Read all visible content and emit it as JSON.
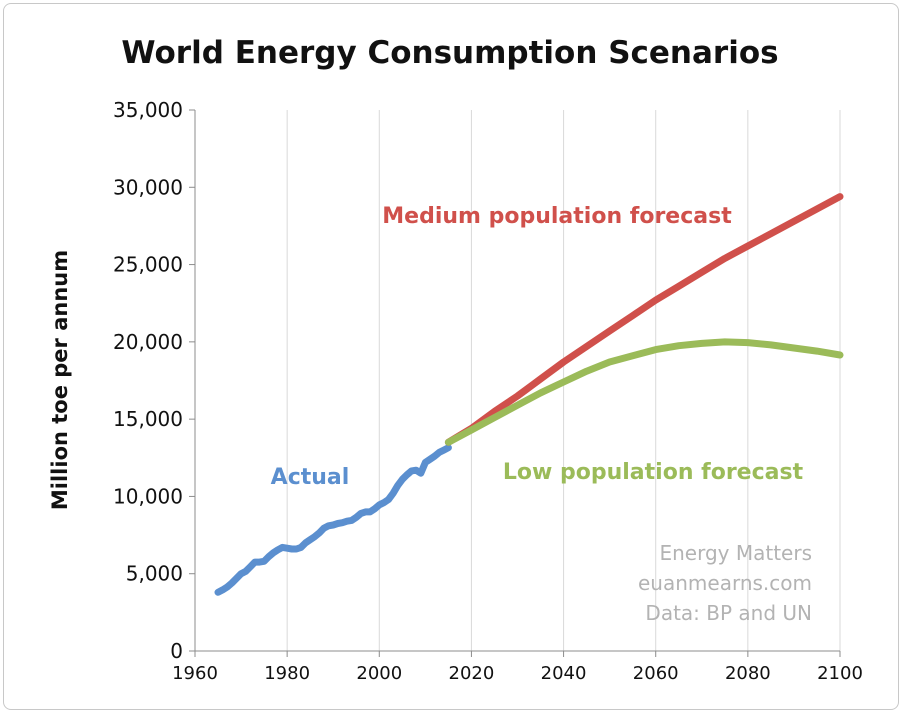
{
  "chart_data": {
    "type": "line",
    "title": "World Energy Consumption Scenarios",
    "xlabel": "",
    "ylabel": "Million toe per annum",
    "xlim": [
      1960,
      2100
    ],
    "ylim": [
      0,
      35000
    ],
    "xticks": [
      1960,
      1980,
      2000,
      2020,
      2040,
      2060,
      2080,
      2100
    ],
    "yticks": [
      0,
      5000,
      10000,
      15000,
      20000,
      25000,
      30000,
      35000
    ],
    "ytick_labels": [
      "0",
      "5,000",
      "10,000",
      "15,000",
      "20,000",
      "25,000",
      "30,000",
      "35,000"
    ],
    "grid": "vertical",
    "legend": "none",
    "series": [
      {
        "name": "Actual",
        "color": "#5b8fcf",
        "x": [
          1965,
          1966,
          1967,
          1968,
          1969,
          1970,
          1971,
          1972,
          1973,
          1974,
          1975,
          1976,
          1977,
          1978,
          1979,
          1980,
          1981,
          1982,
          1983,
          1984,
          1985,
          1986,
          1987,
          1988,
          1989,
          1990,
          1991,
          1992,
          1993,
          1994,
          1995,
          1996,
          1997,
          1998,
          1999,
          2000,
          2001,
          2002,
          2003,
          2004,
          2005,
          2006,
          2007,
          2008,
          2009,
          2010,
          2011,
          2012,
          2013,
          2014,
          2015
        ],
        "y": [
          3800,
          3950,
          4150,
          4400,
          4700,
          5000,
          5150,
          5450,
          5750,
          5750,
          5800,
          6100,
          6350,
          6550,
          6700,
          6650,
          6600,
          6600,
          6700,
          7000,
          7200,
          7400,
          7650,
          7950,
          8100,
          8150,
          8250,
          8300,
          8400,
          8450,
          8650,
          8900,
          9000,
          9000,
          9200,
          9450,
          9600,
          9800,
          10200,
          10700,
          11100,
          11400,
          11650,
          11700,
          11500,
          12200,
          12400,
          12600,
          12850,
          13000,
          13150
        ]
      },
      {
        "name": "Medium population forecast",
        "color": "#d0504b",
        "x": [
          2015,
          2020,
          2025,
          2030,
          2035,
          2040,
          2045,
          2050,
          2055,
          2060,
          2065,
          2070,
          2075,
          2080,
          2085,
          2090,
          2095,
          2100
        ],
        "y": [
          13500,
          14400,
          15500,
          16500,
          17600,
          18700,
          19700,
          20700,
          21700,
          22700,
          23600,
          24500,
          25400,
          26200,
          27000,
          27800,
          28600,
          29400
        ]
      },
      {
        "name": "Low population forecast",
        "color": "#9bbb59",
        "x": [
          2015,
          2020,
          2025,
          2030,
          2035,
          2040,
          2045,
          2050,
          2055,
          2060,
          2065,
          2070,
          2075,
          2080,
          2085,
          2090,
          2095,
          2100
        ],
        "y": [
          13500,
          14300,
          15100,
          15900,
          16700,
          17400,
          18100,
          18700,
          19100,
          19500,
          19750,
          19900,
          20000,
          19950,
          19800,
          19600,
          19400,
          19150
        ]
      }
    ],
    "annotations": [
      {
        "text": "Actual",
        "color": "#5b8fcf"
      },
      {
        "text": "Medium population forecast",
        "color": "#d0504b"
      },
      {
        "text": "Low population forecast",
        "color": "#9bbb59"
      }
    ],
    "credits": [
      "Energy Matters",
      "euanmearns.com",
      "Data: BP and UN"
    ]
  }
}
